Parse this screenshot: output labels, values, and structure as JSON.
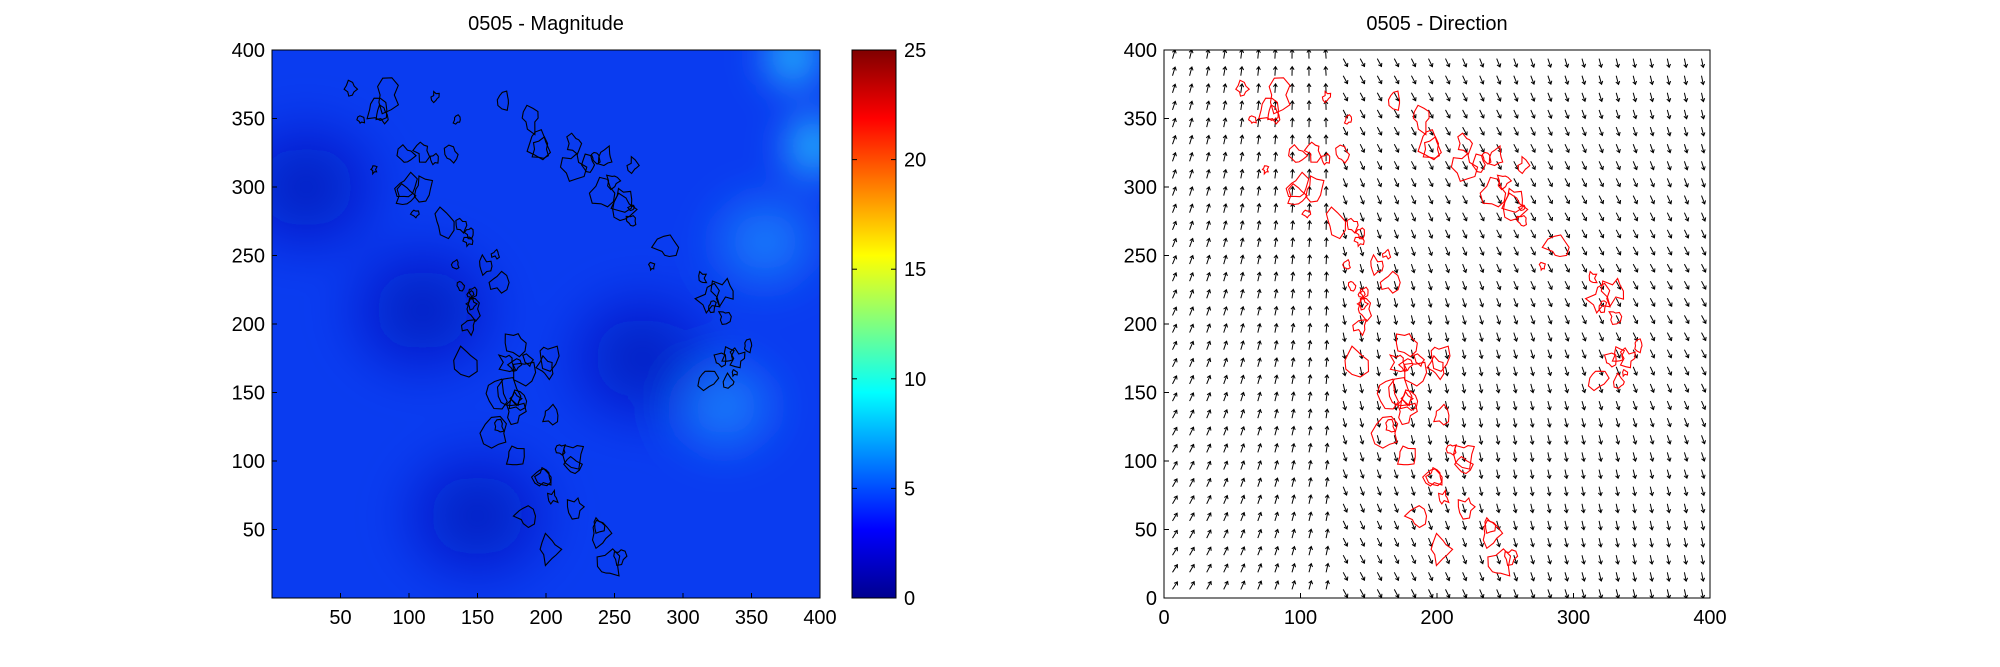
{
  "chart_data": [
    {
      "type": "heatmap",
      "title": "0505 -  Magnitude",
      "xlim": [
        0,
        400
      ],
      "ylim": [
        0,
        400
      ],
      "x_ticks": [
        50,
        100,
        150,
        200,
        250,
        300,
        350,
        400
      ],
      "y_ticks": [
        50,
        100,
        150,
        200,
        250,
        300,
        350,
        400
      ],
      "colorbar": {
        "range": [
          0,
          25
        ],
        "ticks": [
          0,
          5,
          10,
          15,
          20,
          25
        ],
        "colormap": "jet"
      },
      "base_color": "#0a3cf0",
      "field_features": [
        {
          "desc": "low magnitude",
          "x": 25,
          "y": 300,
          "value": 1.0
        },
        {
          "desc": "low magnitude",
          "x": 110,
          "y": 210,
          "value": 1.5
        },
        {
          "desc": "low magnitude",
          "x": 150,
          "y": 60,
          "value": 1.0
        },
        {
          "desc": "low magnitude",
          "x": 270,
          "y": 175,
          "value": 1.0
        },
        {
          "desc": "moderate magnitude",
          "x": 330,
          "y": 140,
          "value": 5.0
        },
        {
          "desc": "moderate magnitude",
          "x": 360,
          "y": 260,
          "value": 6.0
        },
        {
          "desc": "high magnitude",
          "x": 380,
          "y": 395,
          "value": 8.5
        },
        {
          "desc": "high magnitude",
          "x": 395,
          "y": 330,
          "value": 9.0
        }
      ],
      "outline_color": "#000000"
    },
    {
      "type": "quiver",
      "title": "0505 -  Direction",
      "xlim": [
        0,
        400
      ],
      "ylim": [
        0,
        400
      ],
      "x_ticks": [
        0,
        100,
        200,
        300,
        400
      ],
      "y_ticks": [
        0,
        50,
        100,
        150,
        200,
        250,
        300,
        350,
        400
      ],
      "grid_spacing": 12.5,
      "arrow_color": "#000000",
      "outline_color": "#ff0000"
    }
  ]
}
